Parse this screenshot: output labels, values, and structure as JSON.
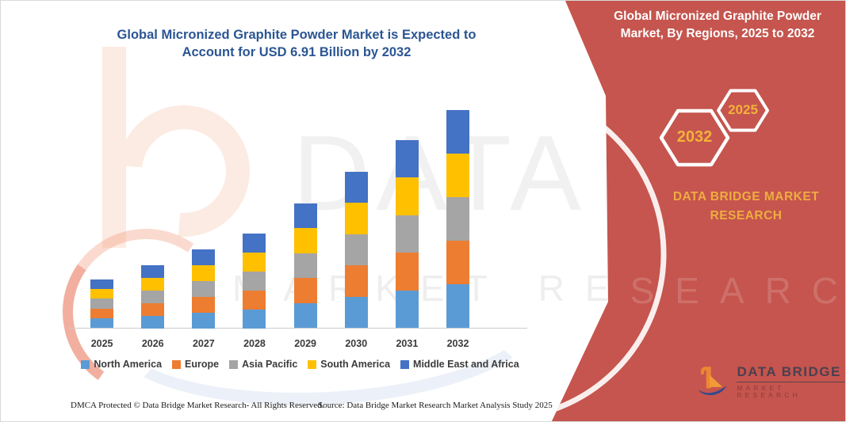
{
  "page": {
    "title": "Global Micronized Graphite Powder Market is Expected to Account for USD 6.91 Billion by 2032",
    "footer_dmca": "DMCA Protected © Data Bridge Market Research-  All Rights Reserved.",
    "footer_source": "Source: Data Bridge Market Research  Market Analysis Study 2025"
  },
  "watermark": {
    "line1": "DATA BRIDGE",
    "line2": "MARKET RESEARCH"
  },
  "panel": {
    "title": "Global Micronized Graphite Powder Market, By Regions, 2025 to 2032",
    "badges": [
      {
        "label": "2032"
      },
      {
        "label": "2025"
      }
    ],
    "brand_text": "DATA BRIDGE MARKET RESEARCH",
    "red": "#c5554e",
    "gold": "#f3b13c"
  },
  "logo": {
    "name": "DATA BRIDGE",
    "tagline": "MARKET RESEARCH"
  },
  "chart_data": {
    "type": "bar",
    "stacked": true,
    "title": "Global Micronized Graphite Powder Market is Expected to Account for USD 6.91 Billion by 2032",
    "unit": "USD Billion",
    "categories": [
      "2025",
      "2026",
      "2027",
      "2028",
      "2029",
      "2030",
      "2031",
      "2032"
    ],
    "series": [
      {
        "name": "North America",
        "color": "#5B9BD5",
        "values": [
          0.31,
          0.4,
          0.5,
          0.6,
          0.79,
          0.99,
          1.19,
          1.38
        ]
      },
      {
        "name": "Europe",
        "color": "#ED7D31",
        "values": [
          0.31,
          0.4,
          0.5,
          0.6,
          0.79,
          0.99,
          1.19,
          1.38
        ]
      },
      {
        "name": "Asia Pacific",
        "color": "#A5A5A5",
        "values": [
          0.31,
          0.4,
          0.5,
          0.6,
          0.79,
          0.99,
          1.19,
          1.38
        ]
      },
      {
        "name": "South America",
        "color": "#FFC000",
        "values": [
          0.31,
          0.4,
          0.5,
          0.6,
          0.79,
          0.99,
          1.19,
          1.38
        ]
      },
      {
        "name": "Middle East and Africa",
        "color": "#4472C4",
        "values": [
          0.31,
          0.4,
          0.5,
          0.6,
          0.79,
          0.99,
          1.19,
          1.38
        ]
      }
    ],
    "totals": [
      1.55,
      2.0,
      2.5,
      3.0,
      3.95,
      4.95,
      5.95,
      6.9
    ],
    "ylim": [
      0,
      7
    ],
    "gridlines": false,
    "y_axis_visible": false,
    "legend_position": "bottom"
  }
}
